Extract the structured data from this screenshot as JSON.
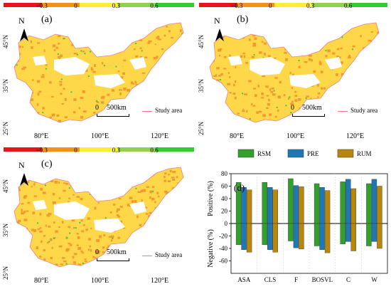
{
  "colorbar": {
    "ticks": [
      "−0.3",
      "0",
      "0.3",
      "0.6"
    ],
    "colors": [
      "#e8141a",
      "#f39219",
      "#ffee33",
      "#92d050",
      "#33cc33"
    ]
  },
  "panels": [
    {
      "label": "(a)",
      "north": "N",
      "scale": "500km",
      "scale_zero": "0",
      "legend": "Study area",
      "lat_labels": [
        "45°N",
        "35°N",
        "25°N"
      ],
      "lon_labels": [
        "80°E",
        "100°E",
        "120°E"
      ]
    },
    {
      "label": "(b)",
      "north": "N",
      "scale": "500km",
      "scale_zero": "0",
      "legend": "Study area",
      "lat_labels": [
        "45°N",
        "35°N",
        "25°N"
      ],
      "lon_labels": [
        "80°E",
        "100°E",
        "120°E"
      ]
    },
    {
      "label": "(c)",
      "north": "N",
      "scale": "500km",
      "scale_zero": "0",
      "legend": "Study area",
      "lat_labels": [
        "45°N",
        "35°N",
        "25°N"
      ],
      "lon_labels": [
        "80°E",
        "100°E",
        "120°E"
      ]
    }
  ],
  "colors": {
    "map_fill": "#ffd84a",
    "map_orange": "#f29a2e",
    "map_outline": "#f08080",
    "rsm": "#33a02c",
    "pre": "#1f78b4",
    "rum": "#b8860b"
  },
  "chart_data": {
    "type": "bar",
    "label": "(d)",
    "categories": [
      "ASA",
      "CLS",
      "F",
      "BOSVL",
      "C",
      "W"
    ],
    "series": [
      {
        "name": "RSM",
        "positive": [
          66,
          66,
          72,
          64,
          67,
          64
        ],
        "negative": [
          -34,
          -34,
          -28,
          -36,
          -33,
          -36
        ]
      },
      {
        "name": "PRE",
        "positive": [
          58,
          58,
          61,
          58,
          71,
          71
        ],
        "negative": [
          -42,
          -42,
          -39,
          -42,
          -29,
          -29
        ]
      },
      {
        "name": "RUM",
        "positive": [
          54,
          54,
          59,
          53,
          56,
          60
        ],
        "negative": [
          -46,
          -46,
          -41,
          -47,
          -44,
          -40
        ]
      }
    ],
    "ylim": [
      -80,
      80
    ],
    "yticks": [
      -60,
      -40,
      -20,
      0,
      20,
      40,
      60,
      80
    ],
    "ylabel_positive": "Positive (%)",
    "ylabel_negative": "Negative (%)"
  }
}
